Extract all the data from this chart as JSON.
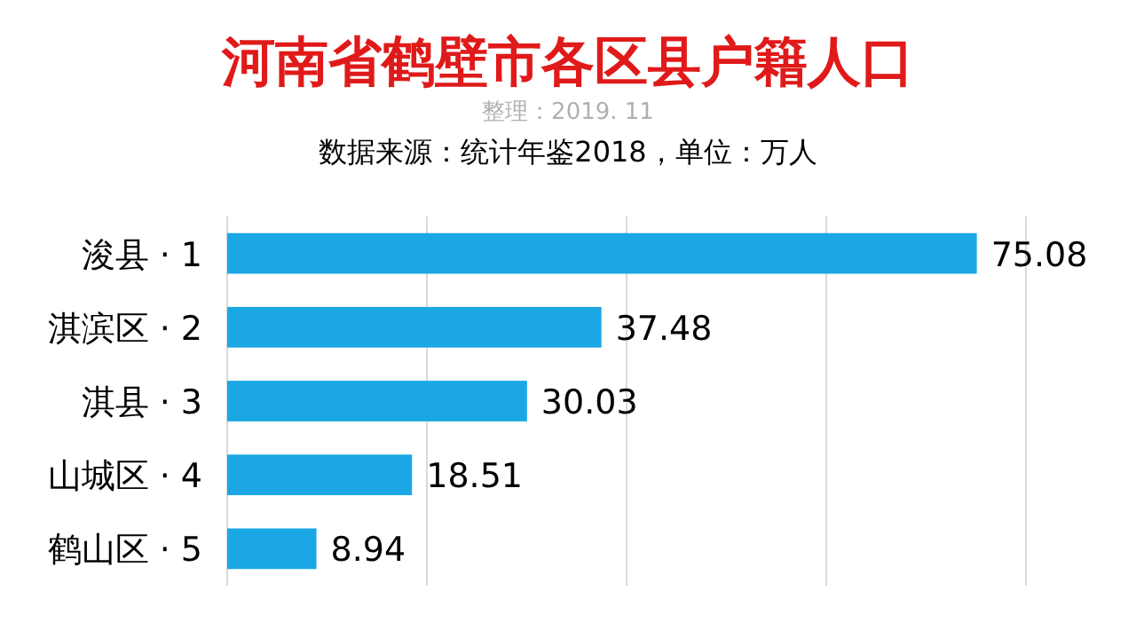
{
  "chart_data": {
    "type": "bar",
    "orientation": "horizontal",
    "title": "河南省鹤壁市各区县户籍人口",
    "subtitle": "整理：2019. 11",
    "annotations": [
      "数据来源：统计年鉴2018，单位：万人"
    ],
    "categories": [
      "浚县 · 1",
      "淇滨区 · 2",
      "淇县 · 3",
      "山城区 · 4",
      "鹤山区 · 5"
    ],
    "values": [
      75.08,
      37.48,
      30.03,
      18.51,
      8.94
    ],
    "color": "#1aa7e4",
    "xlim": [
      0,
      80
    ],
    "xticks": [
      {
        "value": 20,
        "label": null
      },
      {
        "value": 40,
        "label": null
      },
      {
        "value": 60,
        "label": null
      },
      {
        "value": 80,
        "label": null
      }
    ],
    "grid": "x",
    "data_labels": true,
    "tick_labels": "y"
  }
}
